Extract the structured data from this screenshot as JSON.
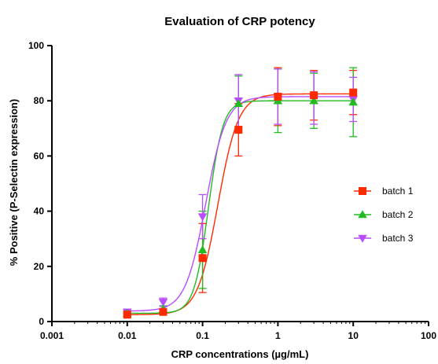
{
  "chart_data": {
    "type": "scatter",
    "title": "Evaluation of CRP potency",
    "xlabel": "CRP concentrations (µg/mL)",
    "ylabel": "% Positive (P-Selectin expression)",
    "xscale": "log",
    "xlim": [
      0.001,
      100
    ],
    "ylim": [
      0,
      100
    ],
    "x_ticks": [
      0.001,
      0.01,
      0.1,
      1,
      10,
      100
    ],
    "x_tick_labels": [
      "0.001",
      "0.01",
      "0.1",
      "1",
      "10",
      "100"
    ],
    "y_ticks": [
      0,
      20,
      40,
      60,
      80,
      100
    ],
    "y_tick_labels": [
      "0",
      "20",
      "40",
      "60",
      "80",
      "100"
    ],
    "grid": false,
    "legend_position": "right",
    "series": [
      {
        "name": "batch 1",
        "color": "#ff2a00",
        "marker": "square",
        "x": [
          0.01,
          0.03,
          0.1,
          0.3,
          1,
          3,
          10
        ],
        "y": [
          2.5,
          3.5,
          23,
          69.5,
          81.5,
          82,
          83
        ],
        "err": [
          0.8,
          1.0,
          12.5,
          9.5,
          10.5,
          9,
          8
        ],
        "fit": {
          "bottom": 2.5,
          "top": 82.5,
          "ec50": 0.16,
          "hill": 3.2
        }
      },
      {
        "name": "batch 2",
        "color": "#22bb22",
        "marker": "triangle-up",
        "x": [
          0.01,
          0.03,
          0.1,
          0.3,
          1,
          3,
          10
        ],
        "y": [
          3,
          4.5,
          26,
          79,
          80,
          80,
          79.5
        ],
        "err": [
          0.8,
          1.2,
          14,
          10,
          11.5,
          10,
          12.5
        ],
        "fit": {
          "bottom": 3,
          "top": 80,
          "ec50": 0.12,
          "hill": 4.5
        }
      },
      {
        "name": "batch 3",
        "color": "#b84cff",
        "marker": "triangle-down",
        "x": [
          0.01,
          0.03,
          0.1,
          0.3,
          1,
          3,
          10
        ],
        "y": [
          3.5,
          7,
          38,
          80,
          81.5,
          81,
          80.5
        ],
        "err": [
          0.6,
          1.5,
          8,
          9.5,
          10,
          9.5,
          8
        ],
        "fit": {
          "bottom": 3.8,
          "top": 81.5,
          "ec50": 0.11,
          "hill": 3.2
        }
      }
    ]
  }
}
